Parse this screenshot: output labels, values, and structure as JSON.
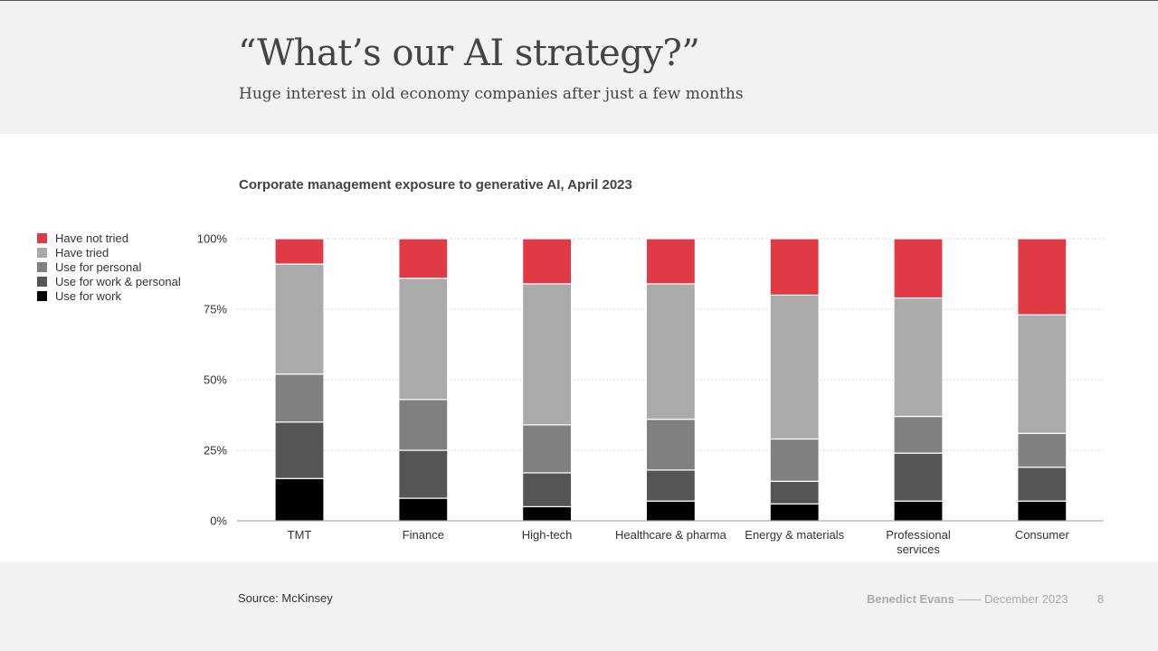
{
  "slide": {
    "title": "“What’s our AI strategy?”",
    "subtitle": "Huge interest in old economy companies after just a few months"
  },
  "footer": {
    "source": "Source: McKinsey",
    "author": "Benedict Evans",
    "separator": "——",
    "date": "December 2023",
    "page": "8"
  },
  "colors": {
    "have_not_tried": "#e03a45",
    "have_tried": "#aaaaaa",
    "use_for_personal": "#808080",
    "use_for_work_personal": "#555555",
    "use_for_work": "#000000",
    "gridline": "#cccccc",
    "axis": "#999999"
  },
  "chart_data": {
    "type": "bar",
    "stacked": true,
    "title": "Corporate management exposure to generative AI, April 2023",
    "xlabel": "",
    "ylabel": "",
    "ylim": [
      0,
      100
    ],
    "yticks": [
      0,
      25,
      50,
      75,
      100
    ],
    "ytick_labels": [
      "0%",
      "25%",
      "50%",
      "75%",
      "100%"
    ],
    "legend_position": "left",
    "categories": [
      "TMT",
      "Finance",
      "High-tech",
      "Healthcare & pharma",
      "Energy & materials",
      "Professional services",
      "Consumer"
    ],
    "category_lines": [
      [
        "TMT"
      ],
      [
        "Finance"
      ],
      [
        "High-tech"
      ],
      [
        "Healthcare & pharma"
      ],
      [
        "Energy & materials"
      ],
      [
        "Professional",
        "services"
      ],
      [
        "Consumer"
      ]
    ],
    "series": [
      {
        "name": "Use for work",
        "color_key": "use_for_work",
        "values": [
          15,
          8,
          5,
          7,
          6,
          7,
          7
        ]
      },
      {
        "name": "Use for work & personal",
        "color_key": "use_for_work_personal",
        "values": [
          20,
          17,
          12,
          11,
          8,
          17,
          12
        ]
      },
      {
        "name": "Use for personal",
        "color_key": "use_for_personal",
        "values": [
          17,
          18,
          17,
          18,
          15,
          13,
          12
        ]
      },
      {
        "name": "Have tried",
        "color_key": "have_tried",
        "values": [
          39,
          43,
          50,
          48,
          51,
          42,
          42
        ]
      },
      {
        "name": "Have not tried",
        "color_key": "have_not_tried",
        "values": [
          9,
          14,
          16,
          16,
          20,
          21,
          27
        ]
      }
    ],
    "legend_order": [
      "Have not tried",
      "Have tried",
      "Use for personal",
      "Use for work & personal",
      "Use for work"
    ]
  }
}
